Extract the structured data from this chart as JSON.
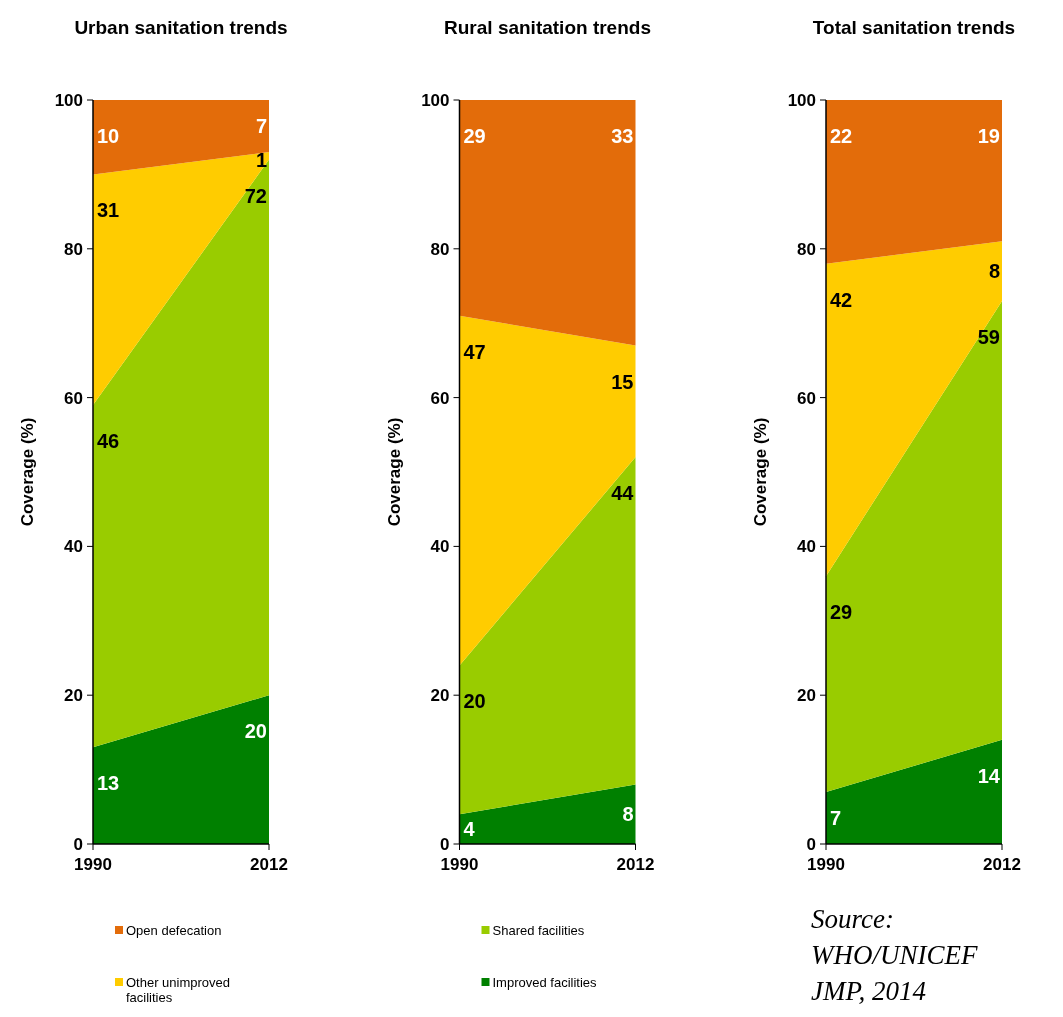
{
  "chart_data": [
    {
      "type": "area",
      "title": "Urban sanitation trends",
      "ylabel": "Coverage (%)",
      "stacked": true,
      "categories": [
        "1990",
        "2012"
      ],
      "ylim": [
        0,
        100
      ],
      "yticks": [
        0,
        20,
        40,
        60,
        80,
        100
      ],
      "data_labels": true,
      "legend": "bottom",
      "grid": false,
      "series": [
        {
          "color": "#008000",
          "values": [
            13,
            20
          ]
        },
        {
          "color": "#99cc00",
          "values": [
            46,
            72
          ]
        },
        {
          "name": "Other unimproved facilities",
          "color": "#ffcc00",
          "values": [
            31,
            1
          ]
        },
        {
          "name": "Open defecation",
          "color": "#e36c0a",
          "values": [
            10,
            7
          ]
        }
      ]
    },
    {
      "type": "area",
      "title": "Rural sanitation trends",
      "ylabel": "Coverage (%)",
      "stacked": true,
      "categories": [
        "1990",
        "2012"
      ],
      "ylim": [
        0,
        100
      ],
      "yticks": [
        0,
        20,
        40,
        60,
        80,
        100
      ],
      "data_labels": true,
      "legend": "bottom",
      "grid": false,
      "series": [
        {
          "name": "Improved facilities",
          "color": "#008000",
          "values": [
            4,
            8
          ]
        },
        {
          "name": "Shared facilities",
          "color": "#99cc00",
          "values": [
            20,
            44
          ]
        },
        {
          "color": "#ffcc00",
          "values": [
            47,
            15
          ]
        },
        {
          "color": "#e36c0a",
          "values": [
            29,
            33
          ]
        }
      ]
    },
    {
      "type": "area",
      "title": "Total sanitation trends",
      "ylabel": "Coverage (%)",
      "stacked": true,
      "categories": [
        "1990",
        "2012"
      ],
      "ylim": [
        0,
        100
      ],
      "yticks": [
        0,
        20,
        40,
        60,
        80,
        100
      ],
      "data_labels": true,
      "grid": false,
      "annotations": [
        "Source: WHO/UNICEF JMP, 2014"
      ],
      "series": [
        {
          "color": "#008000",
          "values": [
            7,
            14
          ]
        },
        {
          "color": "#99cc00",
          "values": [
            29,
            59
          ]
        },
        {
          "color": "#ffcc00",
          "values": [
            42,
            8
          ]
        },
        {
          "color": "#e36c0a",
          "values": [
            22,
            19
          ]
        }
      ]
    }
  ]
}
